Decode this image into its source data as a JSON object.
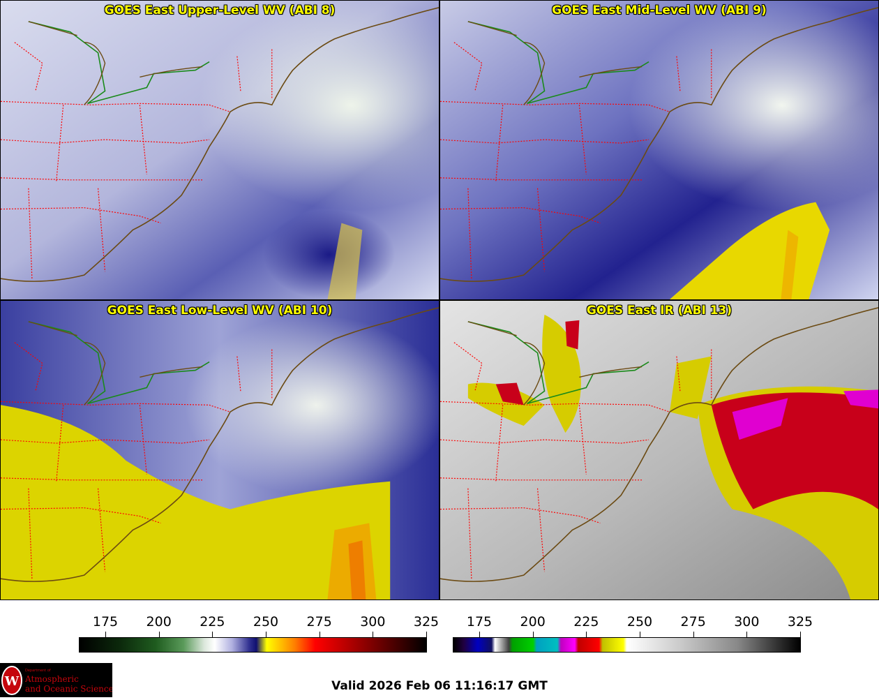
{
  "panels": [
    {
      "title": "GOES East Upper-Level WV (ABI 8)",
      "style": "upper"
    },
    {
      "title": "GOES East Mid-Level WV (ABI 9)",
      "style": "mid"
    },
    {
      "title": "GOES East Low-Level WV (ABI 10)",
      "style": "low"
    },
    {
      "title": "GOES East IR (ABI 13)",
      "style": "ir"
    }
  ],
  "colorbars": {
    "wv": {
      "ticks": [
        "175",
        "200",
        "225",
        "250",
        "275",
        "300",
        "325"
      ]
    },
    "ir": {
      "ticks": [
        "175",
        "200",
        "225",
        "250",
        "275",
        "300",
        "325"
      ]
    }
  },
  "logo": {
    "line1": "Department of",
    "line2": "Atmospheric",
    "line3": "and Oceanic Sciences"
  },
  "valid_text": "Valid 2026 Feb 06 11:16:17 GMT",
  "colors": {
    "title": "#ffff00",
    "state_border": "#ff0000",
    "coastline": "#6b4a12",
    "intl_border": "#1a8a1a",
    "logo_red": "#c5050c"
  }
}
